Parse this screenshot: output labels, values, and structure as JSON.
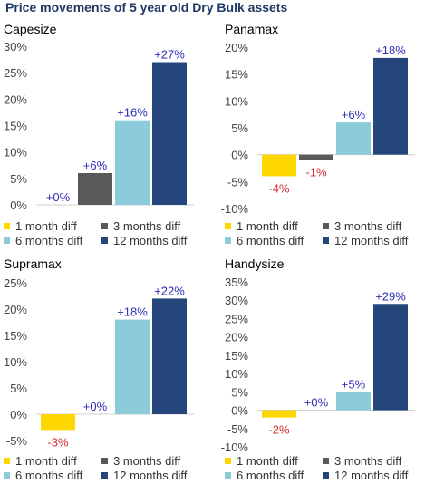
{
  "page_title": "Price movements of 5 year old Dry Bulk assets",
  "colors": {
    "one_month": "#FFD700",
    "three_months": "#595959",
    "six_months": "#8CCBD9",
    "twelve_months": "#24467A",
    "positive_label": "#2E2EB8",
    "negative_label": "#D32F2F",
    "axis_text": "#444444",
    "title": "#1F3864"
  },
  "legend": [
    {
      "label": "1 month diff",
      "color": "#FFD700"
    },
    {
      "label": "3 months diff",
      "color": "#595959"
    },
    {
      "label": "6 months diff",
      "color": "#8CCBD9"
    },
    {
      "label": "12 months diff",
      "color": "#24467A"
    }
  ],
  "chart_data": [
    {
      "type": "bar",
      "title": "Capesize",
      "series_names": [
        "1 month diff",
        "3 months diff",
        "6 months diff",
        "12 months diff"
      ],
      "values": [
        0,
        6,
        16,
        27
      ],
      "value_labels": [
        "+0%",
        "+6%",
        "+16%",
        "+27%"
      ],
      "y_ticks": [
        "30%",
        "25%",
        "20%",
        "15%",
        "10%",
        "5%",
        "0%"
      ],
      "ylim": [
        0,
        30
      ],
      "ytick_step": 5
    },
    {
      "type": "bar",
      "title": "Panamax",
      "series_names": [
        "1 month diff",
        "3 months diff",
        "6 months diff",
        "12 months diff"
      ],
      "values": [
        -4,
        -1,
        6,
        18
      ],
      "value_labels": [
        "-4%",
        "-1%",
        "+6%",
        "+18%"
      ],
      "y_ticks": [
        "20%",
        "15%",
        "10%",
        "5%",
        "0%",
        "-5%",
        "-10%"
      ],
      "ylim": [
        -10,
        20
      ],
      "ytick_step": 5
    },
    {
      "type": "bar",
      "title": "Supramax",
      "series_names": [
        "1 month diff",
        "3 months diff",
        "6 months diff",
        "12 months diff"
      ],
      "values": [
        -3,
        0,
        18,
        22
      ],
      "value_labels": [
        "-3%",
        "+0%",
        "+18%",
        "+22%"
      ],
      "y_ticks": [
        "25%",
        "20%",
        "15%",
        "10%",
        "5%",
        "0%",
        "-5%"
      ],
      "ylim": [
        -5,
        25
      ],
      "ytick_step": 5
    },
    {
      "type": "bar",
      "title": "Handysize",
      "series_names": [
        "1 month diff",
        "3 months diff",
        "6 months diff",
        "12 months diff"
      ],
      "values": [
        -2,
        0,
        5,
        29
      ],
      "value_labels": [
        "-2%",
        "+0%",
        "+5%",
        "+29%"
      ],
      "y_ticks": [
        "35%",
        "30%",
        "25%",
        "20%",
        "15%",
        "10%",
        "5%",
        "0%",
        "-5%",
        "-10%"
      ],
      "ylim": [
        -10,
        35
      ],
      "ytick_step": 5
    }
  ]
}
